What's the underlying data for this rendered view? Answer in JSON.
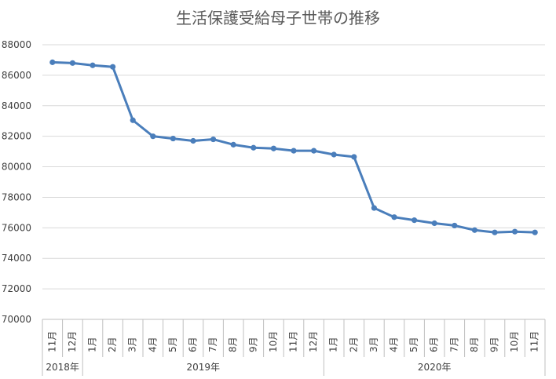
{
  "chart_data": {
    "type": "line",
    "title": "生活保護受給母子世帯の推移",
    "xlabel": "",
    "ylabel": "",
    "ylim": [
      70000,
      88000
    ],
    "yticks": [
      70000,
      72000,
      74000,
      76000,
      78000,
      80000,
      82000,
      84000,
      86000,
      88000
    ],
    "grid": true,
    "legend": "none",
    "categories": [
      "11月",
      "12月",
      "1月",
      "2月",
      "3月",
      "4月",
      "5月",
      "6月",
      "7月",
      "8月",
      "9月",
      "10月",
      "11月",
      "12月",
      "1月",
      "2月",
      "3月",
      "4月",
      "5月",
      "6月",
      "7月",
      "8月",
      "9月",
      "10月",
      "11月"
    ],
    "category_groups": [
      {
        "label": "2018年",
        "count": 2
      },
      {
        "label": "2019年",
        "count": 12
      },
      {
        "label": "2020年",
        "count": 11
      }
    ],
    "series": [
      {
        "values": [
          86850,
          86800,
          86650,
          86550,
          83050,
          82000,
          81850,
          81700,
          81800,
          81450,
          81250,
          81200,
          81050,
          81050,
          80800,
          80650,
          77300,
          76700,
          76500,
          76300,
          76150,
          75850,
          75700,
          75750,
          75700
        ],
        "color": "#4a7ebb"
      }
    ]
  },
  "colors": {
    "line": "#4a7ebb",
    "grid": "#d9d9d9",
    "axis": "#bfbfbf",
    "text": "#404040",
    "title": "#595959"
  }
}
